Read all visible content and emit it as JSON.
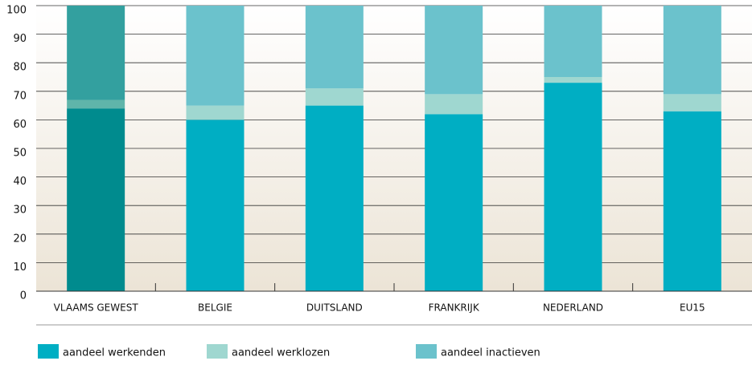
{
  "chart_data": {
    "type": "stacked_bar",
    "categories": [
      "VLAAMS GEWEST",
      "BELGIE",
      "DUITSLAND",
      "FRANKRIJK",
      "NEDERLAND",
      "EU15"
    ],
    "series": [
      {
        "name": "aandeel werkenden",
        "color": "#00aec3",
        "values": [
          64,
          60,
          65,
          62,
          73,
          63
        ]
      },
      {
        "name": "aandeel werklozen",
        "color": "#9fd7d0",
        "values": [
          3,
          5,
          6,
          7,
          2,
          6
        ]
      },
      {
        "name": "aandeel inactieven",
        "color": "#6bc2cc",
        "values": [
          33,
          35,
          29,
          31,
          25,
          31
        ]
      }
    ],
    "highlight": {
      "index": 0,
      "colors": [
        "#008b8e",
        "#5fb5aa",
        "#33a09f"
      ]
    },
    "ylim": [
      0,
      100
    ],
    "yticks": [
      0,
      10,
      20,
      30,
      40,
      50,
      60,
      70,
      80,
      90,
      100
    ],
    "grid": true,
    "legend": "bottom"
  }
}
